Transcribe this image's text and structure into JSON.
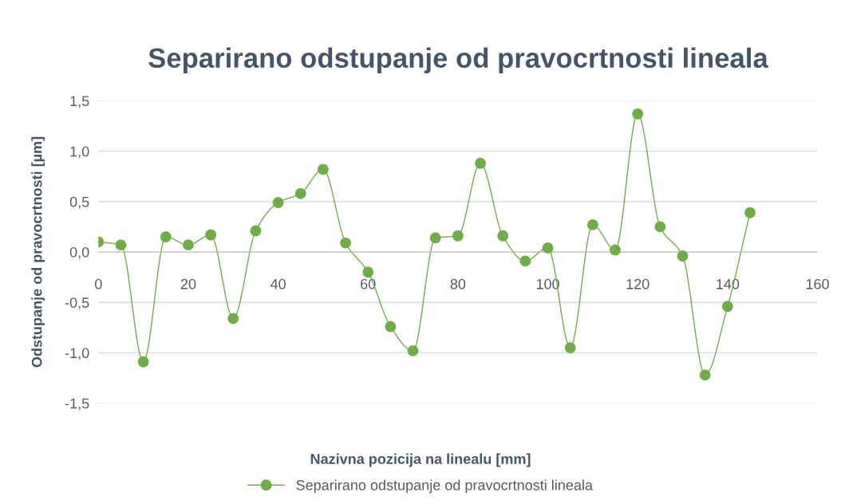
{
  "chart_data": {
    "type": "line",
    "title": "Separirano odstupanje od pravocrtnosti lineala",
    "xlabel": "Nazivna pozicija na linealu [mm]",
    "ylabel": "Odstupanje od pravocrtnosti [µm]",
    "x": [
      0,
      5,
      10,
      15,
      20,
      25,
      30,
      35,
      40,
      45,
      50,
      55,
      60,
      65,
      70,
      75,
      80,
      85,
      90,
      95,
      100,
      105,
      110,
      115,
      120,
      125,
      130,
      135,
      140,
      145
    ],
    "series": [
      {
        "name": "Separirano odstupanje od pravocrtnosti lineala",
        "color": "#70ad47",
        "values": [
          0.1,
          0.07,
          -1.09,
          0.15,
          0.07,
          0.17,
          -0.66,
          0.21,
          0.49,
          0.58,
          0.82,
          0.09,
          -0.2,
          -0.74,
          -0.98,
          0.14,
          0.16,
          0.88,
          0.16,
          -0.09,
          0.04,
          -0.95,
          0.27,
          0.02,
          1.37,
          0.25,
          -0.04,
          -1.22,
          -0.54,
          0.39
        ]
      }
    ],
    "xlim": [
      0,
      160
    ],
    "xticks": [
      0,
      20,
      40,
      60,
      80,
      100,
      120,
      140,
      160
    ],
    "ylim": [
      -1.5,
      1.5
    ],
    "yticks": [
      {
        "value": -1.5,
        "label": "-1,5"
      },
      {
        "value": -1.0,
        "label": "-1,0"
      },
      {
        "value": -0.5,
        "label": "-0,5"
      },
      {
        "value": 0.0,
        "label": "0,0"
      },
      {
        "value": 0.5,
        "label": "0,5"
      },
      {
        "value": 1.0,
        "label": "1,0"
      },
      {
        "value": 1.5,
        "label": "1,5"
      }
    ],
    "grid": "y",
    "legend": "bottom",
    "marker": "circle",
    "line_style": "solid"
  }
}
